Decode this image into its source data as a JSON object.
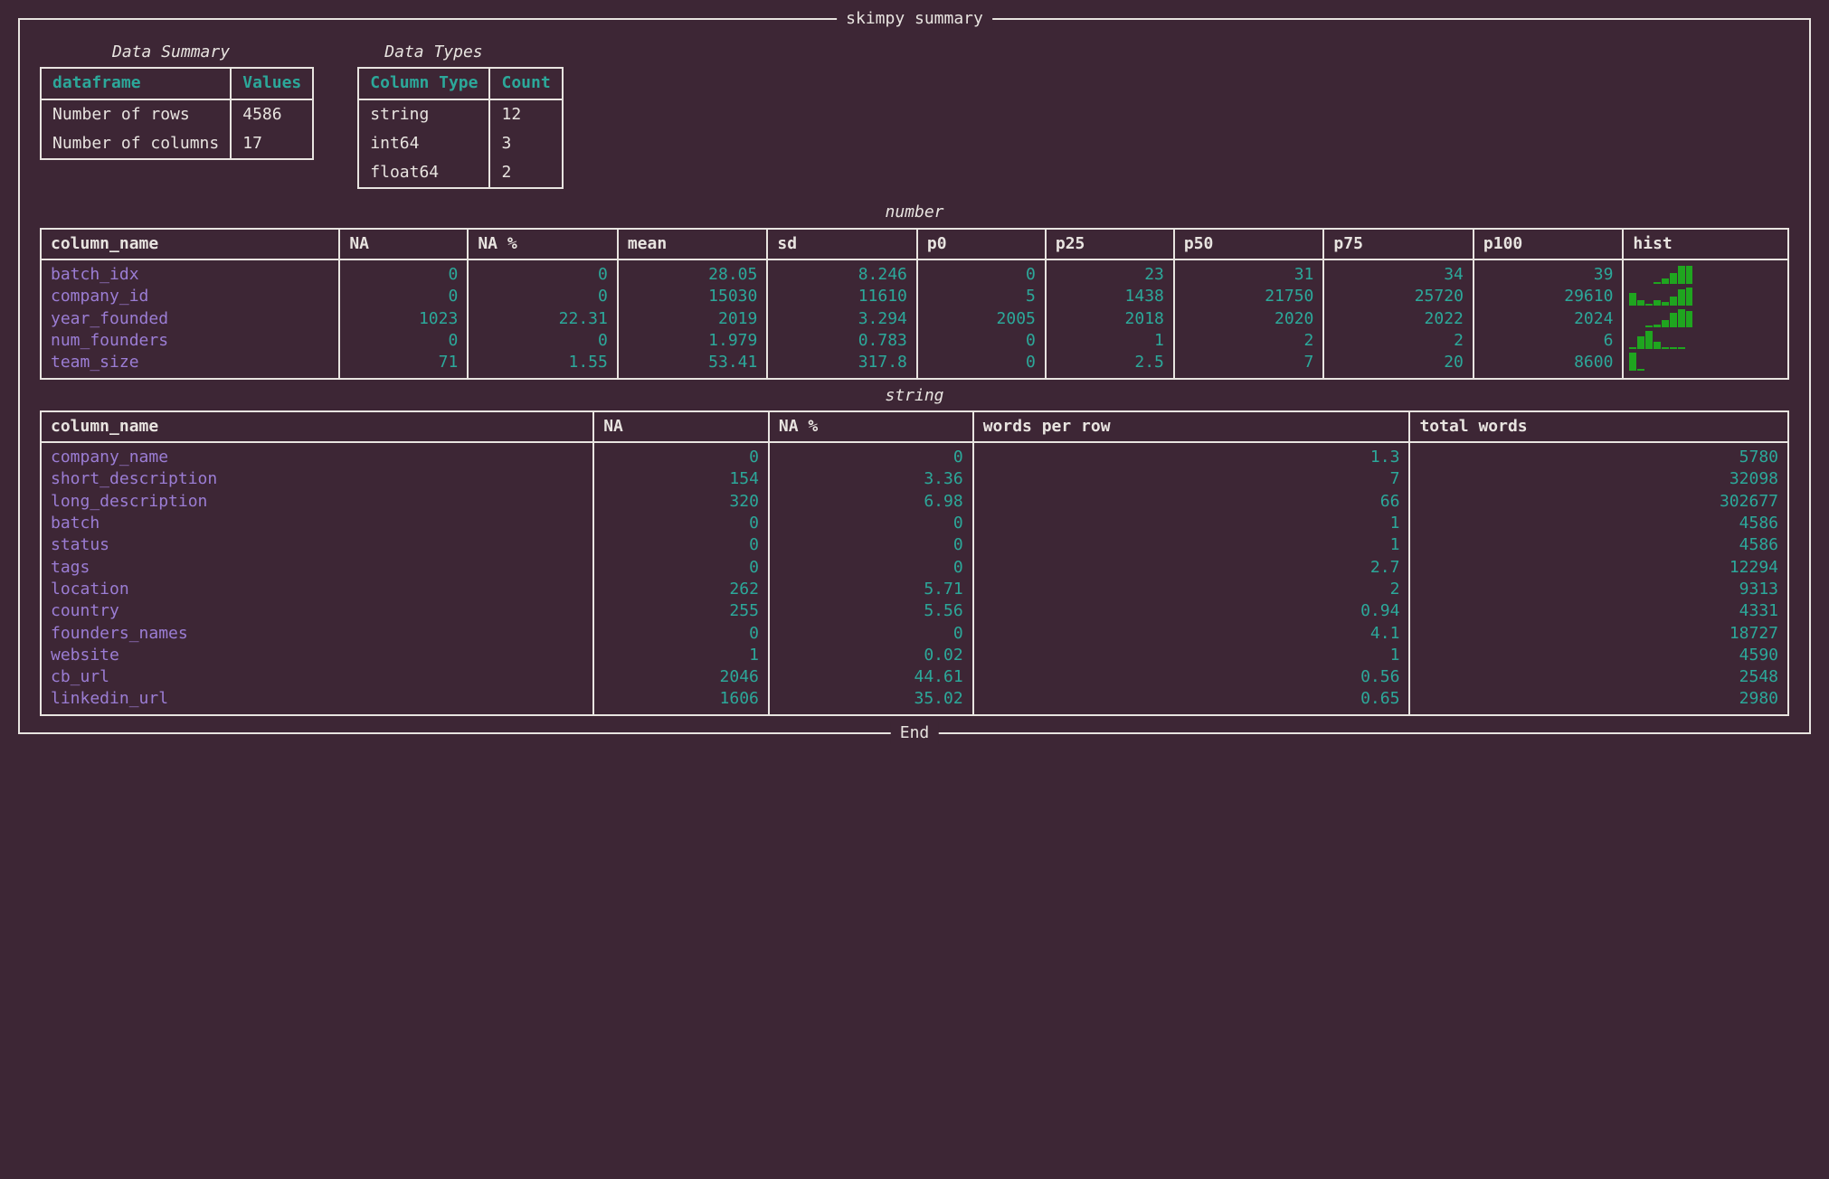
{
  "panel": {
    "title": "skimpy summary",
    "end": "End"
  },
  "data_summary": {
    "title": "Data Summary",
    "headers": [
      "dataframe",
      "Values"
    ],
    "rows": [
      [
        "Number of rows",
        "4586"
      ],
      [
        "Number of columns",
        "17"
      ]
    ]
  },
  "data_types": {
    "title": "Data Types",
    "headers": [
      "Column Type",
      "Count"
    ],
    "rows": [
      [
        "string",
        "12"
      ],
      [
        "int64",
        "3"
      ],
      [
        "float64",
        "2"
      ]
    ]
  },
  "number_section": {
    "title": "number",
    "headers": [
      "column_name",
      "NA",
      "NA %",
      "mean",
      "sd",
      "p0",
      "p25",
      "p50",
      "p75",
      "p100",
      "hist"
    ],
    "rows": [
      {
        "name": "batch_idx",
        "NA": "0",
        "NA_pct": "0",
        "mean": "28.05",
        "sd": "8.246",
        "p0": "0",
        "p25": "23",
        "p50": "31",
        "p75": "34",
        "p100": "39",
        "hist": [
          0,
          0,
          0,
          5,
          30,
          60,
          100,
          100
        ]
      },
      {
        "name": "company_id",
        "NA": "0",
        "NA_pct": "0",
        "mean": "15030",
        "sd": "11610",
        "p0": "5",
        "p25": "1438",
        "p50": "21750",
        "p75": "25720",
        "p100": "29610",
        "hist": [
          70,
          30,
          10,
          30,
          20,
          50,
          90,
          100
        ]
      },
      {
        "name": "year_founded",
        "NA": "1023",
        "NA_pct": "22.31",
        "mean": "2019",
        "sd": "3.294",
        "p0": "2005",
        "p25": "2018",
        "p50": "2020",
        "p75": "2022",
        "p100": "2024",
        "hist": [
          0,
          0,
          5,
          15,
          40,
          80,
          100,
          90
        ]
      },
      {
        "name": "num_founders",
        "NA": "0",
        "NA_pct": "0",
        "mean": "1.979",
        "sd": "0.783",
        "p0": "0",
        "p25": "1",
        "p50": "2",
        "p75": "2",
        "p100": "6",
        "hist": [
          5,
          70,
          100,
          40,
          10,
          5,
          2,
          0
        ]
      },
      {
        "name": "team_size",
        "NA": "71",
        "NA_pct": "1.55",
        "mean": "53.41",
        "sd": "317.8",
        "p0": "0",
        "p25": "2.5",
        "p50": "7",
        "p75": "20",
        "p100": "8600",
        "hist": [
          100,
          3,
          0,
          0,
          0,
          0,
          0,
          0
        ]
      }
    ]
  },
  "string_section": {
    "title": "string",
    "headers": [
      "column_name",
      "NA",
      "NA %",
      "words per row",
      "total words"
    ],
    "rows": [
      {
        "name": "company_name",
        "NA": "0",
        "NA_pct": "0",
        "wpr": "1.3",
        "total": "5780"
      },
      {
        "name": "short_description",
        "NA": "154",
        "NA_pct": "3.36",
        "wpr": "7",
        "total": "32098"
      },
      {
        "name": "long_description",
        "NA": "320",
        "NA_pct": "6.98",
        "wpr": "66",
        "total": "302677"
      },
      {
        "name": "batch",
        "NA": "0",
        "NA_pct": "0",
        "wpr": "1",
        "total": "4586"
      },
      {
        "name": "status",
        "NA": "0",
        "NA_pct": "0",
        "wpr": "1",
        "total": "4586"
      },
      {
        "name": "tags",
        "NA": "0",
        "NA_pct": "0",
        "wpr": "2.7",
        "total": "12294"
      },
      {
        "name": "location",
        "NA": "262",
        "NA_pct": "5.71",
        "wpr": "2",
        "total": "9313"
      },
      {
        "name": "country",
        "NA": "255",
        "NA_pct": "5.56",
        "wpr": "0.94",
        "total": "4331"
      },
      {
        "name": "founders_names",
        "NA": "0",
        "NA_pct": "0",
        "wpr": "4.1",
        "total": "18727"
      },
      {
        "name": "website",
        "NA": "1",
        "NA_pct": "0.02",
        "wpr": "1",
        "total": "4590"
      },
      {
        "name": "cb_url",
        "NA": "2046",
        "NA_pct": "44.61",
        "wpr": "0.56",
        "total": "2548"
      },
      {
        "name": "linkedin_url",
        "NA": "1606",
        "NA_pct": "35.02",
        "wpr": "0.65",
        "total": "2980"
      }
    ]
  },
  "colors": {
    "bg": "#3d2635",
    "fg": "#e8e4e0",
    "teal": "#2ca89a",
    "purple": "#9b7dd4",
    "green": "#1fa51f"
  }
}
